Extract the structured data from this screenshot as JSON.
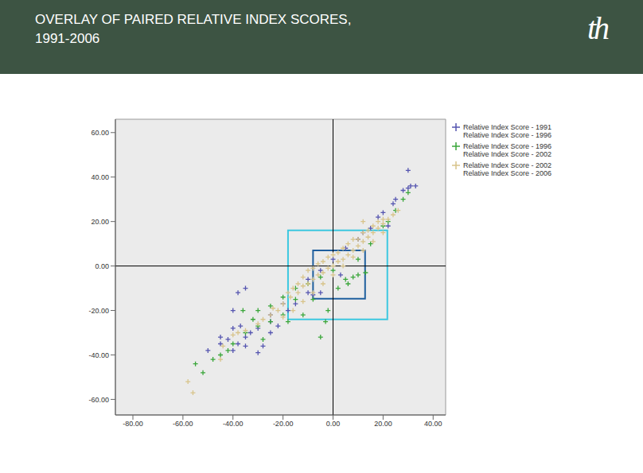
{
  "header": {
    "title": "OVERLAY OF PAIRED RELATIVE INDEX SCORES,\n1991-2006",
    "logo": "th"
  },
  "chart_data": {
    "type": "scatter",
    "marker": "plus",
    "grid": false,
    "legend": "right",
    "xlim": [
      -87,
      45
    ],
    "ylim": [
      -67,
      66
    ],
    "xticks": [
      {
        "value": -80,
        "label": "-80.00"
      },
      {
        "value": -60,
        "label": "-60.00"
      },
      {
        "value": -40,
        "label": "-40.00"
      },
      {
        "value": -20,
        "label": "-20.00"
      },
      {
        "value": 0,
        "label": "0.00"
      },
      {
        "value": 20,
        "label": "20.00"
      },
      {
        "value": 40,
        "label": "40.00"
      }
    ],
    "yticks": [
      {
        "value": -60,
        "label": "-60.00"
      },
      {
        "value": -40,
        "label": "-40.00"
      },
      {
        "value": -20,
        "label": "-20.00"
      },
      {
        "value": 0,
        "label": "0.00"
      },
      {
        "value": 20,
        "label": "20.00"
      },
      {
        "value": 40,
        "label": "40.00"
      },
      {
        "value": 60,
        "label": "60.00"
      }
    ],
    "reference_lines": {
      "x": 0,
      "y": 0,
      "color": "#000000"
    },
    "boxes": [
      {
        "x1": -18,
        "x2": 21.7,
        "y1": -24,
        "y2": 16,
        "color": "#3cc8e0"
      },
      {
        "x1": -8,
        "x2": 12.8,
        "y1": -14.7,
        "y2": 7,
        "color": "#1f5f9e"
      }
    ],
    "series": [
      {
        "name": "Relative Index Score - 1991\nRelative Index Score - 1996",
        "color": "#5555b0",
        "x": [
          30,
          31,
          33,
          28,
          25,
          20,
          15,
          22,
          10,
          5,
          0,
          -5,
          -10,
          -20,
          -25,
          -30,
          -35,
          -40,
          -42,
          -38,
          -45,
          -50,
          -30,
          -28,
          -35,
          -22,
          -15,
          -5,
          -8,
          -40,
          -37,
          -33,
          -25,
          -18,
          -10,
          3,
          12,
          18,
          24,
          30,
          -38,
          -40,
          -35,
          -45,
          -25
        ],
        "values": [
          43,
          36,
          36,
          34,
          30,
          24,
          17,
          18,
          12,
          8,
          3,
          -2,
          -6,
          -17,
          -22,
          -28,
          -32,
          -38,
          -33,
          -35,
          -35,
          -38,
          -39,
          -36,
          -36,
          -27,
          -17,
          -12,
          -13,
          -28,
          -27,
          -30,
          -30,
          -20,
          -12,
          -4,
          15,
          22,
          28,
          35,
          -12,
          -20,
          -10,
          -32,
          -25
        ]
      },
      {
        "name": "Relative Index Score - 1996\nRelative Index Score - 2002",
        "color": "#3aa63a",
        "x": [
          -52,
          -55,
          -48,
          -45,
          -40,
          -35,
          -30,
          -25,
          -20,
          -15,
          -10,
          -5,
          0,
          5,
          8,
          10,
          15,
          20,
          25,
          28,
          -3,
          -5,
          -12,
          -2,
          -20,
          -15,
          -30,
          -36,
          -42,
          -28,
          10,
          13,
          22,
          -8,
          -18,
          2,
          6,
          -25,
          -32,
          30
        ],
        "values": [
          -48,
          -44,
          -42,
          -40,
          -35,
          -30,
          -27,
          -25,
          -22,
          -15,
          -8,
          -5,
          -2,
          -6,
          -5,
          3,
          10,
          18,
          25,
          30,
          -25,
          -32,
          -22,
          -20,
          -14,
          -10,
          -20,
          -20,
          -38,
          -33,
          -4,
          -3,
          20,
          -15,
          -25,
          -10,
          -8,
          -18,
          -24,
          33
        ]
      },
      {
        "name": "Relative Index Score - 2002\nRelative Index Score - 2006",
        "color": "#d8c48a",
        "x": [
          -58,
          -56,
          -45,
          -44,
          -40,
          -35,
          -30,
          -25,
          -20,
          -17,
          -14,
          -12,
          -10,
          -8,
          -6,
          -4,
          -2,
          0,
          2,
          4,
          6,
          8,
          10,
          12,
          14,
          16,
          18,
          20,
          22,
          24,
          26,
          -16,
          -12,
          -8,
          -4,
          0,
          4,
          8,
          12,
          16,
          20,
          -20,
          -16,
          -12,
          -8,
          -4,
          0,
          4,
          8,
          12,
          16,
          20,
          -10,
          -6,
          -2,
          2,
          6,
          -18,
          -14,
          10,
          14,
          18,
          -38,
          12,
          -24,
          -28,
          -22
        ],
        "values": [
          -52,
          -57,
          -42,
          -36,
          -31,
          -29,
          -26,
          -22,
          -17,
          -14,
          -12,
          -9,
          -8,
          -6,
          -4,
          -3,
          -1,
          0,
          2,
          3,
          5,
          7,
          9,
          11,
          13,
          15,
          17,
          19,
          21,
          23,
          25,
          -10,
          -5,
          -1,
          2,
          5,
          8,
          12,
          15,
          18,
          21,
          -23,
          -20,
          -16,
          -12,
          -8,
          -4,
          0,
          4,
          7,
          11,
          15,
          -2,
          1,
          4,
          6,
          10,
          -12,
          -8,
          12,
          16,
          20,
          -30,
          20,
          -19,
          -24,
          -20
        ]
      }
    ]
  }
}
